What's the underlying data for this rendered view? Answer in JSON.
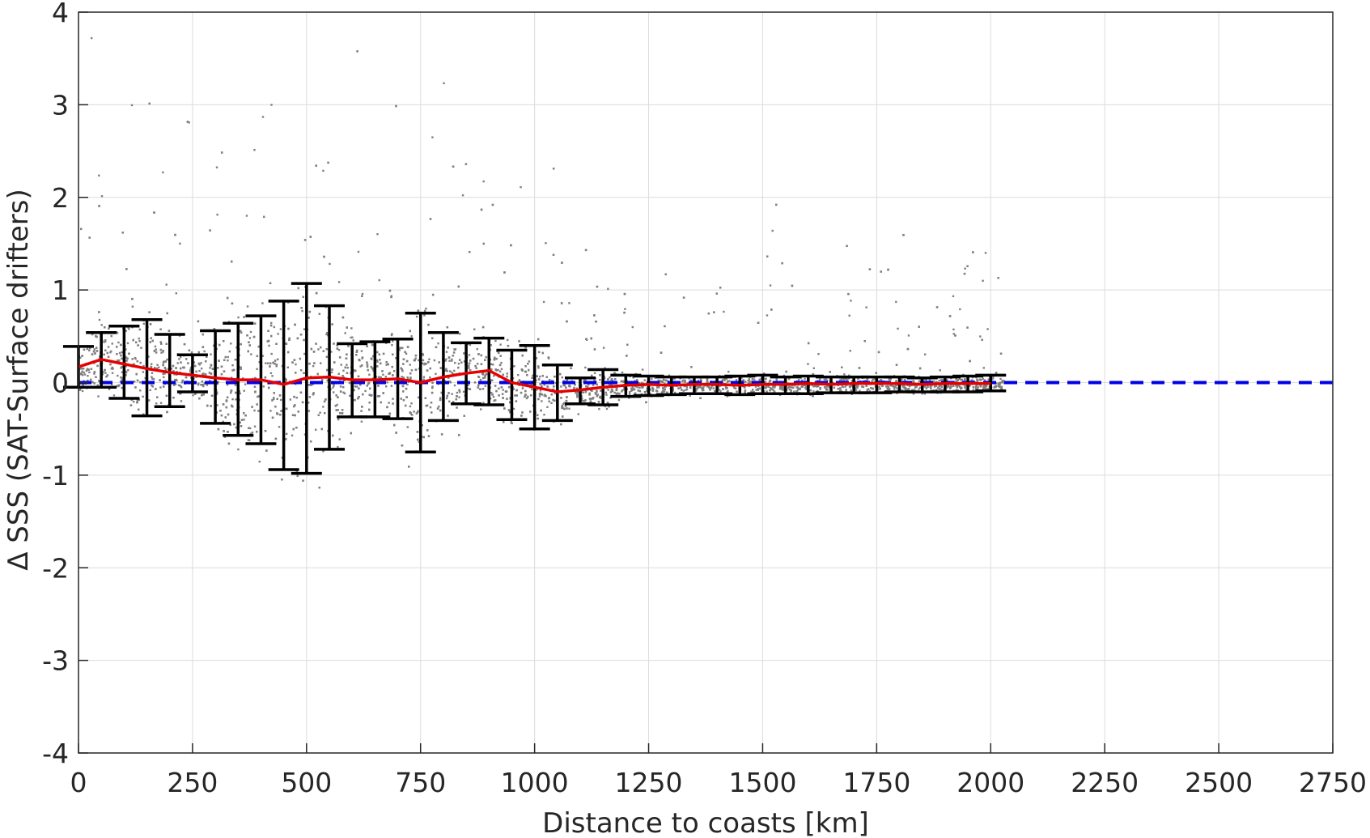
{
  "chart_data": {
    "type": "scatter",
    "title": "",
    "xlabel": "Distance to coasts [km]",
    "ylabel": "Δ SSS (SAT-Surface drifters)",
    "xlim": [
      0,
      2750
    ],
    "ylim": [
      -4,
      4
    ],
    "xticks": [
      0,
      250,
      500,
      750,
      1000,
      1250,
      1500,
      1750,
      2000,
      2250,
      2500,
      2750
    ],
    "yticks": [
      -4,
      -3,
      -2,
      -1,
      0,
      1,
      2,
      3,
      4
    ],
    "xtick_labels": [
      "0",
      "250",
      "500",
      "750",
      "1000",
      "1250",
      "1500",
      "1750",
      "2000",
      "2250",
      "2500",
      "2750"
    ],
    "ytick_labels": [
      "-4",
      "-3",
      "-2",
      "-1",
      "0",
      "1",
      "2",
      "3",
      "4"
    ],
    "grid": true,
    "colors": {
      "scatter": "#808080",
      "mean_line": "#e60000",
      "zero_line": "#0000e6",
      "error_bars": "#000000",
      "grid": "#dcdcdc",
      "axes": "#262626"
    },
    "scatter_note_series": "gray points: individual satellite minus drifter SSS differences",
    "zero_reference": {
      "y": 0,
      "x_range": [
        0,
        2750
      ],
      "style": "dashed"
    },
    "mean_line": {
      "x": [
        0,
        50,
        100,
        150,
        200,
        250,
        300,
        350,
        400,
        450,
        500,
        550,
        600,
        650,
        700,
        750,
        800,
        850,
        900,
        950,
        1000,
        1050,
        1100,
        1150,
        1200,
        1250,
        1300,
        1350,
        1400,
        1450,
        1500,
        1550,
        1600,
        1650,
        1700,
        1750,
        1800,
        1850,
        1900,
        1950,
        2000
      ],
      "y": [
        0.17,
        0.25,
        0.2,
        0.15,
        0.11,
        0.08,
        0.05,
        0.03,
        0.03,
        -0.02,
        0.05,
        0.06,
        0.03,
        0.03,
        0.04,
        0.0,
        0.06,
        0.1,
        0.13,
        0.0,
        -0.05,
        -0.1,
        -0.08,
        -0.05,
        -0.03,
        -0.02,
        -0.03,
        -0.02,
        -0.02,
        -0.03,
        -0.02,
        -0.02,
        -0.01,
        -0.02,
        -0.01,
        -0.01,
        -0.01,
        -0.02,
        -0.01,
        -0.01,
        -0.01
      ]
    },
    "error_bars": {
      "x": [
        0,
        50,
        100,
        150,
        200,
        250,
        300,
        350,
        400,
        450,
        500,
        550,
        600,
        650,
        700,
        750,
        800,
        850,
        900,
        950,
        1000,
        1050,
        1100,
        1150,
        1200,
        1250,
        1300,
        1350,
        1400,
        1450,
        1500,
        1550,
        1600,
        1650,
        1700,
        1750,
        1800,
        1850,
        1900,
        1950,
        2000
      ],
      "upper": [
        0.39,
        0.54,
        0.61,
        0.68,
        0.52,
        0.3,
        0.56,
        0.64,
        0.72,
        0.88,
        1.07,
        0.83,
        0.42,
        0.44,
        0.47,
        0.75,
        0.54,
        0.43,
        0.48,
        0.35,
        0.4,
        0.19,
        0.05,
        0.14,
        0.08,
        0.07,
        0.06,
        0.06,
        0.06,
        0.07,
        0.08,
        0.06,
        0.07,
        0.06,
        0.06,
        0.06,
        0.06,
        0.05,
        0.06,
        0.07,
        0.08
      ],
      "lower": [
        -0.05,
        -0.05,
        -0.17,
        -0.36,
        -0.26,
        -0.1,
        -0.44,
        -0.57,
        -0.66,
        -0.94,
        -0.98,
        -0.72,
        -0.37,
        -0.37,
        -0.39,
        -0.75,
        -0.41,
        -0.23,
        -0.24,
        -0.4,
        -0.5,
        -0.41,
        -0.23,
        -0.24,
        -0.15,
        -0.14,
        -0.13,
        -0.12,
        -0.12,
        -0.13,
        -0.12,
        -0.12,
        -0.12,
        -0.11,
        -0.11,
        -0.11,
        -0.1,
        -0.1,
        -0.1,
        -0.1,
        -0.09
      ]
    },
    "scatter_points": {
      "count_estimate": "dense",
      "x_range": [
        0,
        2030
      ],
      "y_range": [
        -1.5,
        4.0
      ]
    }
  }
}
